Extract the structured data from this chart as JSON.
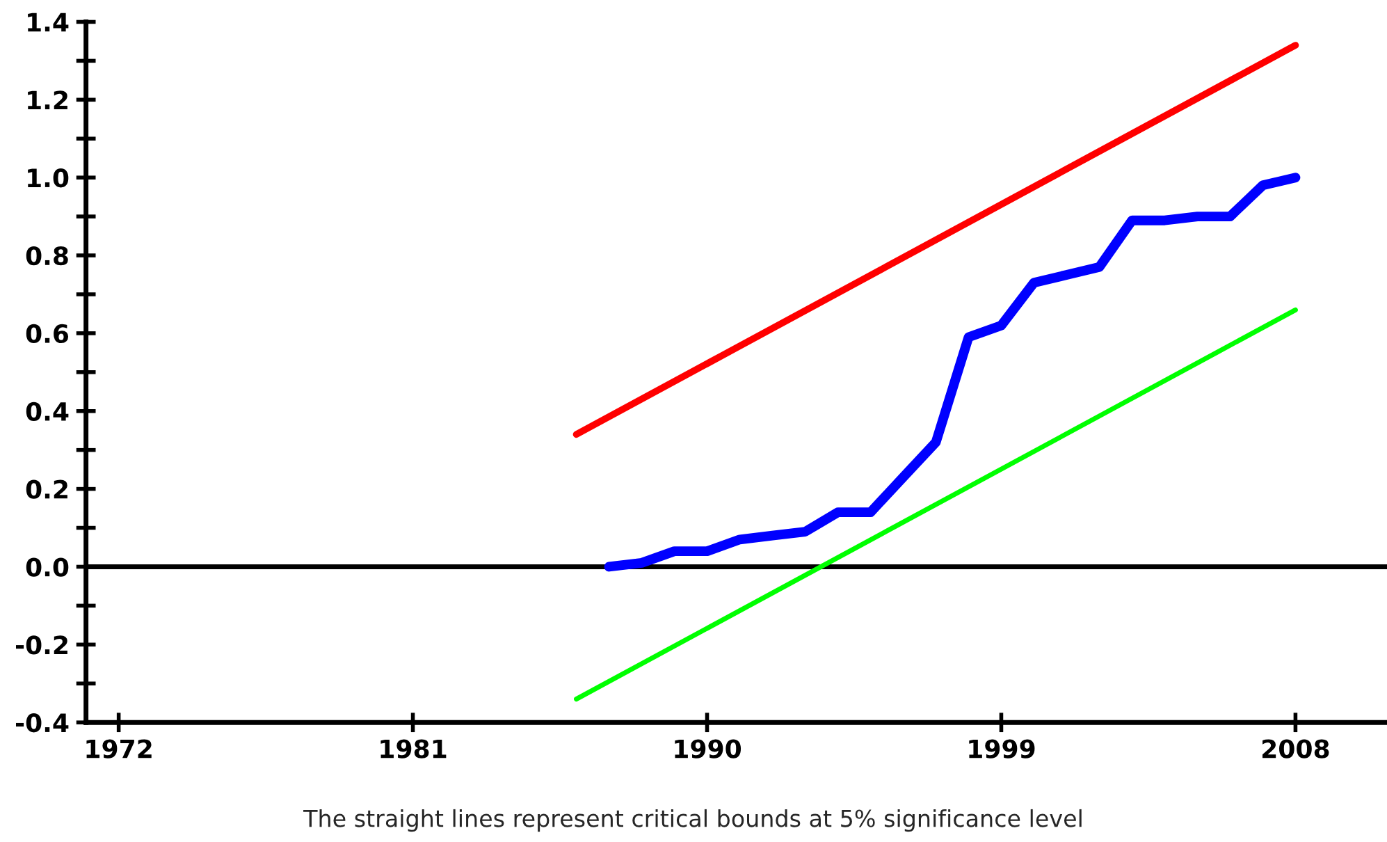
{
  "chart_data": {
    "type": "line",
    "xlim": [
      1971,
      2010.8
    ],
    "xticks": [
      1972,
      1981,
      1990,
      1999,
      2008
    ],
    "ylim": [
      -0.4,
      1.4
    ],
    "yticks": [
      {
        "value": -0.4,
        "label": "-0.4"
      },
      {
        "value": -0.3,
        "label": null
      },
      {
        "value": -0.2,
        "label": "-0.2"
      },
      {
        "value": -0.1,
        "label": null
      },
      {
        "value": 0,
        "label": "0.0"
      },
      {
        "value": 0.1,
        "label": null
      },
      {
        "value": 0.2,
        "label": "0.2"
      },
      {
        "value": 0.3,
        "label": null
      },
      {
        "value": 0.4,
        "label": "0.4"
      },
      {
        "value": 0.5,
        "label": null
      },
      {
        "value": 0.6,
        "label": "0.6"
      },
      {
        "value": 0.7,
        "label": null
      },
      {
        "value": 0.8,
        "label": "0.8"
      },
      {
        "value": 0.9,
        "label": null
      },
      {
        "value": 1.0,
        "label": "1.0"
      },
      {
        "value": 1.1,
        "label": null
      },
      {
        "value": 1.2,
        "label": "1.2"
      },
      {
        "value": 1.3,
        "label": null
      },
      {
        "value": 1.4,
        "label": "1.4"
      }
    ],
    "series": [
      {
        "color": "#ff0000",
        "x": [
          1986,
          2008
        ],
        "values": [
          0.34,
          1.34
        ]
      },
      {
        "color": "#00ff00",
        "x": [
          1986,
          2008
        ],
        "values": [
          -0.34,
          0.66
        ]
      },
      {
        "color": "#0000ff",
        "x": [
          1987,
          1988,
          1989,
          1990,
          1991,
          1992,
          1993,
          1994,
          1995,
          1996,
          1997,
          1998,
          1999,
          2000,
          2001,
          2002,
          2003,
          2004,
          2005,
          2006,
          2007,
          2008
        ],
        "values": [
          0.0,
          0.01,
          0.04,
          0.04,
          0.07,
          0.08,
          0.09,
          0.14,
          0.14,
          0.23,
          0.32,
          0.59,
          0.62,
          0.73,
          0.75,
          0.77,
          0.89,
          0.89,
          0.9,
          0.9,
          0.98,
          1.0
        ]
      }
    ],
    "ref_lines": [
      {
        "axis": "y",
        "value": 0,
        "color": "#000000",
        "line_style": "solid"
      }
    ],
    "annotations": [
      "The straight lines represent critical bounds at 5% significance level"
    ],
    "grid": false
  }
}
